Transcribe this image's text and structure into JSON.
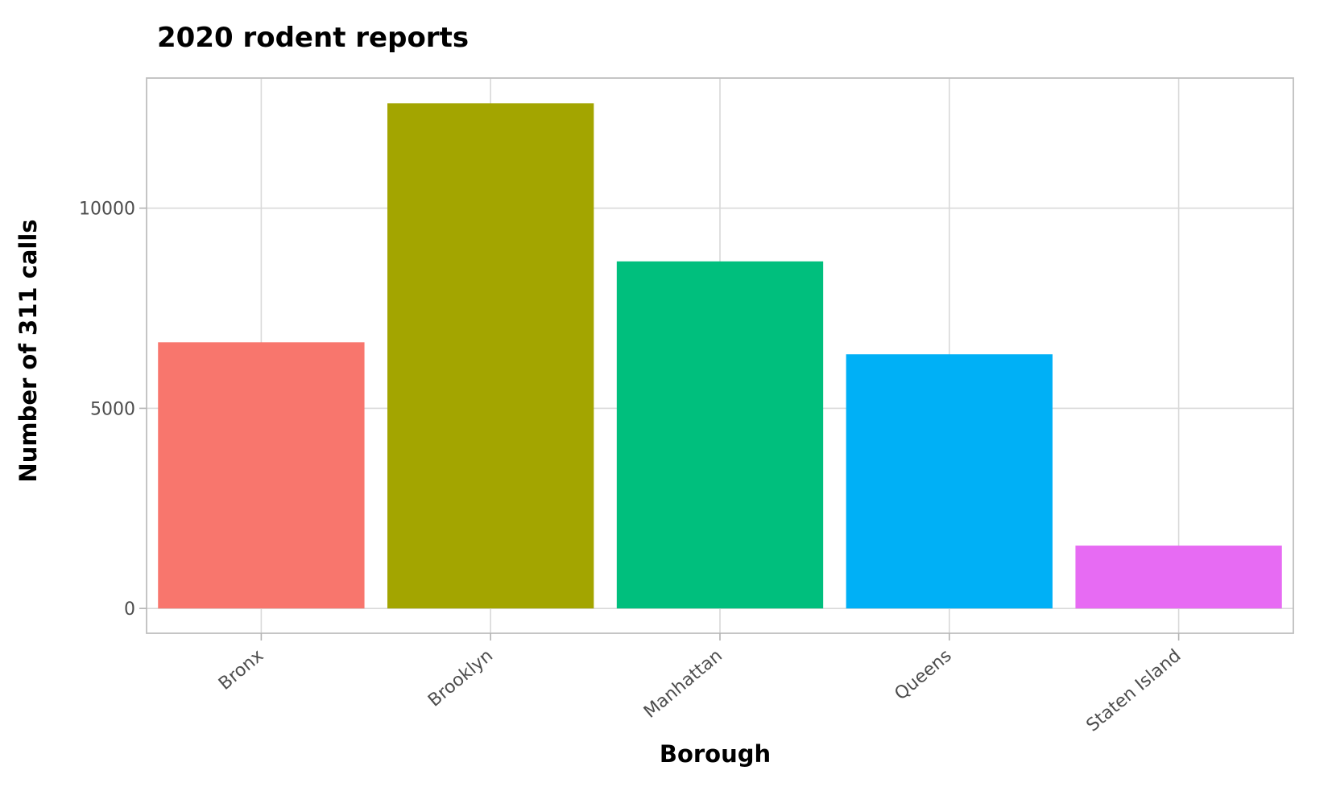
{
  "chart_data": {
    "type": "bar",
    "title": "2020 rodent reports",
    "xlabel": "Borough",
    "ylabel": "Number of 311 calls",
    "categories": [
      "Bronx",
      "Brooklyn",
      "Manhattan",
      "Queens",
      "Staten Island"
    ],
    "values": [
      6650,
      12620,
      8670,
      6350,
      1570
    ],
    "colors": [
      "#F8766D",
      "#A3A500",
      "#00BF7D",
      "#00B0F6",
      "#E76BF3"
    ],
    "ylim": [
      -620,
      13250
    ],
    "yticks": [
      0,
      5000,
      10000
    ],
    "ytick_labels": [
      "0",
      "5000",
      "10000"
    ],
    "grid": true,
    "legend": "none"
  }
}
